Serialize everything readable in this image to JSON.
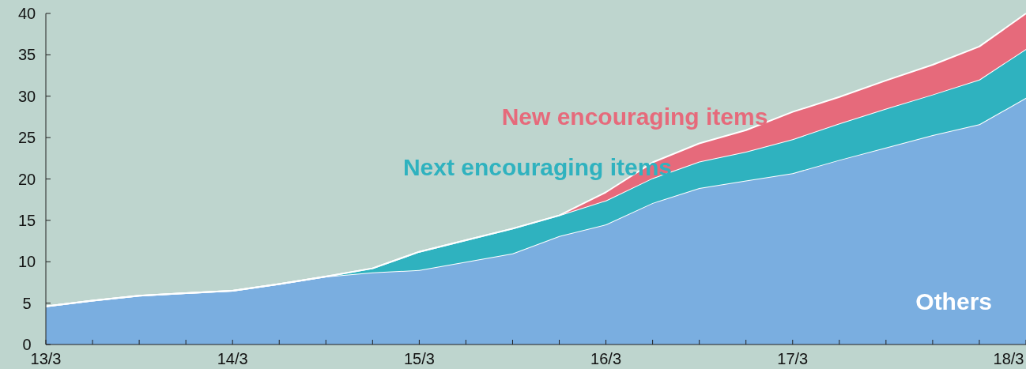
{
  "chart_data": {
    "type": "area",
    "stacked": true,
    "categories": [
      "13/3",
      null,
      null,
      null,
      "14/3",
      null,
      null,
      null,
      "15/3",
      null,
      null,
      null,
      "16/3",
      null,
      null,
      null,
      "17/3",
      null,
      null,
      null,
      null,
      "18/3"
    ],
    "series": [
      {
        "name": "Others",
        "color": "#7aaee0",
        "values": [
          4.6,
          5.3,
          5.9,
          6.2,
          6.5,
          7.3,
          8.2,
          8.7,
          9.0,
          10.0,
          11.0,
          13.1,
          14.5,
          17.1,
          18.9,
          19.8,
          20.7,
          22.3,
          23.8,
          25.3,
          26.6,
          29.8
        ]
      },
      {
        "name": "Next encouraging items",
        "color": "#2fb2bf",
        "values": [
          0,
          0,
          0,
          0,
          0,
          0,
          0,
          0.5,
          2.2,
          2.6,
          3.0,
          2.5,
          2.9,
          3.0,
          3.2,
          3.5,
          4.1,
          4.4,
          4.7,
          4.9,
          5.4,
          5.9
        ]
      },
      {
        "name": "New encouraging items",
        "color": "#e66a7b",
        "values": [
          0,
          0,
          0,
          0,
          0,
          0,
          0,
          0,
          0,
          0,
          0,
          0,
          1.0,
          1.9,
          2.2,
          2.6,
          3.3,
          3.2,
          3.4,
          3.6,
          4.0,
          4.3
        ]
      }
    ],
    "ylim": [
      0,
      40
    ],
    "yticks": [
      0,
      5,
      10,
      15,
      20,
      25,
      30,
      35,
      40
    ],
    "grid": false,
    "legend": false
  }
}
